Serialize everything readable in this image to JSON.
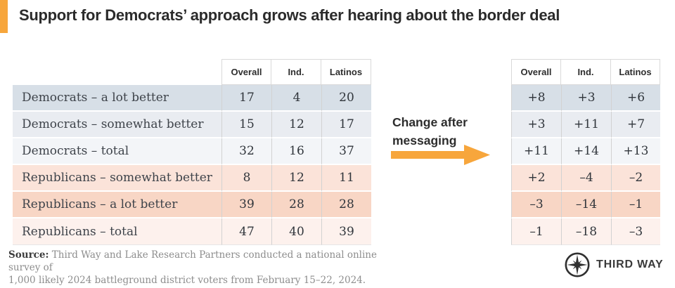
{
  "title": "Support for Democrats’ approach grows after hearing about the border deal",
  "colors": {
    "accent_orange": "#F7A63C",
    "dem_strong_row": "#D7DFE7",
    "dem_mid_row": "#E9ECF1",
    "dem_light_row": "#F3F5F8",
    "rep_light_row": "#FBE3D9",
    "rep_strong_row": "#F8D6C5",
    "rep_lighter_row": "#FDF1ED",
    "text_dark": "#2b2b2b",
    "text_serif": "#3e434a",
    "source_gray": "#8d8d8d"
  },
  "table": {
    "columns": [
      "Overall",
      "Ind.",
      "Latinos"
    ],
    "rows": [
      {
        "label": "Democrats – a lot better",
        "values": [
          "17",
          "4",
          "20"
        ],
        "change": [
          "+8",
          "+3",
          "+6"
        ],
        "tone": "dem-strong"
      },
      {
        "label": "Democrats – somewhat better",
        "values": [
          "15",
          "12",
          "17"
        ],
        "change": [
          "+3",
          "+11",
          "+7"
        ],
        "tone": "dem-mid"
      },
      {
        "label": "Democrats – total",
        "values": [
          "32",
          "16",
          "37"
        ],
        "change": [
          "+11",
          "+14",
          "+13"
        ],
        "tone": "dem-light"
      },
      {
        "label": "Republicans – somewhat better",
        "values": [
          "8",
          "12",
          "11"
        ],
        "change": [
          "+2",
          "–4",
          "–2"
        ],
        "tone": "rep-light"
      },
      {
        "label": "Republicans – a lot better",
        "values": [
          "39",
          "28",
          "28"
        ],
        "change": [
          "–3",
          "–14",
          "–1"
        ],
        "tone": "rep-strong"
      },
      {
        "label": "Republicans – total",
        "values": [
          "47",
          "40",
          "39"
        ],
        "change": [
          "–1",
          "–18",
          "–3"
        ],
        "tone": "rep-lighter"
      }
    ]
  },
  "annotation": {
    "label": "Change after messaging"
  },
  "source": {
    "label": "Source:",
    "line1": "Third Way and Lake Research Partners conducted a national online survey of",
    "line2": "1,000 likely 2024 battleground district voters from February 15–22, 2024."
  },
  "logo": {
    "text": "THIRD WAY"
  },
  "chart_data": {
    "type": "table",
    "title": "Support for Democrats’ approach grows after hearing about the border deal",
    "columns": [
      "Overall",
      "Ind.",
      "Latinos"
    ],
    "row_labels": [
      "Democrats – a lot better",
      "Democrats – somewhat better",
      "Democrats – total",
      "Republicans – somewhat better",
      "Republicans – a lot better",
      "Republicans – total"
    ],
    "initial_support": [
      [
        17,
        4,
        20
      ],
      [
        15,
        12,
        17
      ],
      [
        32,
        16,
        37
      ],
      [
        8,
        12,
        11
      ],
      [
        39,
        28,
        28
      ],
      [
        47,
        40,
        39
      ]
    ],
    "change_after_messaging": [
      [
        8,
        3,
        6
      ],
      [
        3,
        11,
        7
      ],
      [
        11,
        14,
        13
      ],
      [
        2,
        -4,
        -2
      ],
      [
        -3,
        -14,
        -1
      ],
      [
        -1,
        -18,
        -3
      ]
    ],
    "annotation": "Change after messaging",
    "source": "Source: Third Way and Lake Research Partners conducted a national online survey of 1,000 likely 2024 battleground district voters from February 15–22, 2024."
  }
}
